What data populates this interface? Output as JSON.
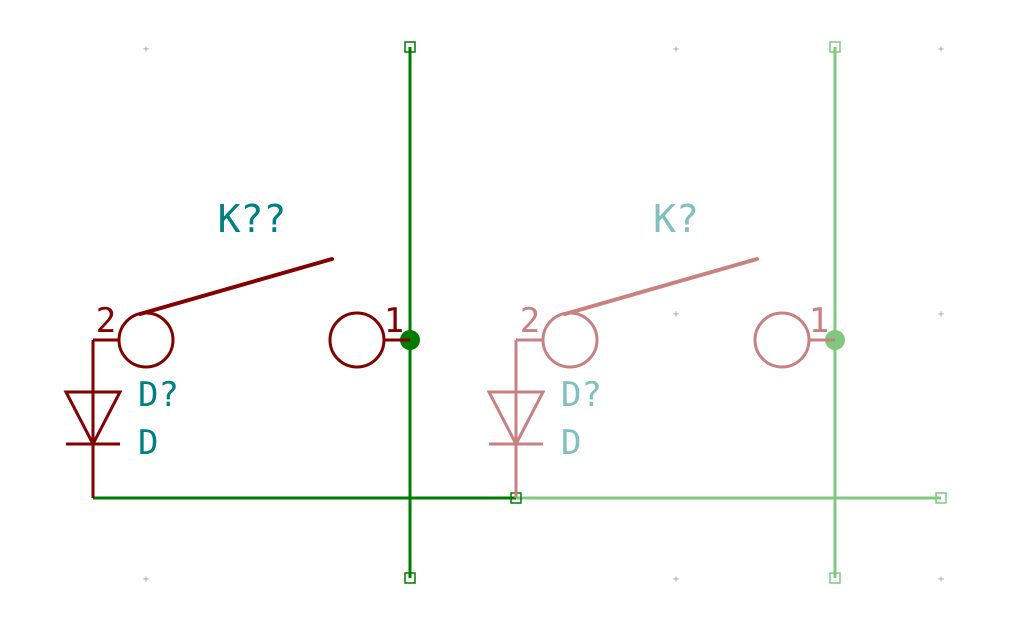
{
  "colors": {
    "background": "#ffffff",
    "wire": "#007d00",
    "wire_ghost": "#80c880",
    "symbol": "#820000",
    "symbol_ghost": "#c88080",
    "label": "#008080",
    "label_ghost": "#80c0c0",
    "grid": "#a0a0a0"
  },
  "icons": {
    "grid": "grid-dot-icon",
    "switch": "keyswitch-symbol-icon",
    "diode": "diode-symbol-icon",
    "junction": "junction-dot-icon",
    "wire_end": "wire-endpoint-icon"
  },
  "schematic": {
    "switch_main": {
      "reference": "K??",
      "pin2": "2",
      "pin1": "1"
    },
    "switch_ghost": {
      "reference": "K?",
      "pin2": "2",
      "pin1": "1"
    },
    "diode_main": {
      "reference": "D?",
      "value": "D"
    },
    "diode_ghost": {
      "reference": "D?",
      "value": "D"
    }
  }
}
